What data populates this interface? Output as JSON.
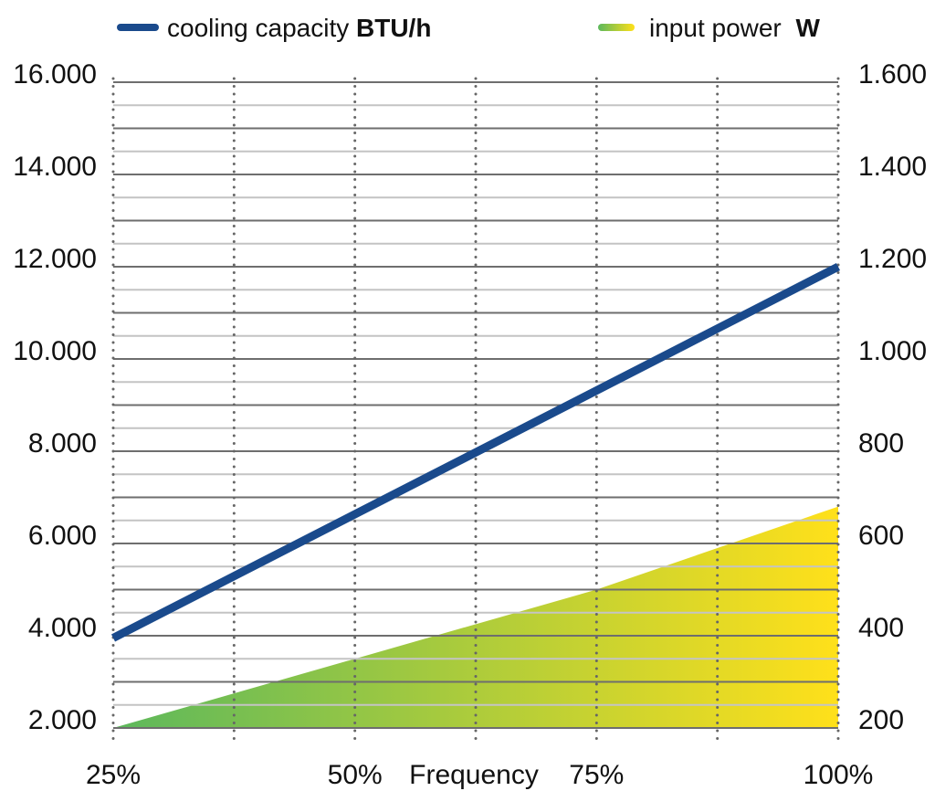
{
  "chart_data": {
    "type": "line+area",
    "xlabel": "Frequency",
    "x_ticks": [
      "25%",
      "50%",
      "75%",
      "100%"
    ],
    "x_range": [
      25,
      100
    ],
    "x_minor_grid": [
      25,
      37.5,
      50,
      62.5,
      75,
      87.5,
      100
    ],
    "y_left": {
      "range": [
        2000,
        16000
      ],
      "ticks": [
        "2.000",
        "4.000",
        "6.000",
        "8.000",
        "10.000",
        "12.000",
        "14.000",
        "16.000"
      ],
      "tick_values": [
        2000,
        4000,
        6000,
        8000,
        10000,
        12000,
        14000,
        16000
      ]
    },
    "y_right": {
      "range": [
        200,
        1600
      ],
      "ticks": [
        "200",
        "400",
        "600",
        "800",
        "1.000",
        "1.200",
        "1.400",
        "1.600"
      ],
      "tick_values": [
        200,
        400,
        600,
        800,
        1000,
        1200,
        1400,
        1600
      ]
    },
    "grid": true,
    "legend_placement": "top",
    "series": [
      {
        "name": "cooling capacity",
        "unit": "BTU/h",
        "type": "line",
        "axis": "left",
        "color": "#1a4a8c",
        "x": [
          25,
          100
        ],
        "y": [
          3950,
          12000
        ]
      },
      {
        "name": "input power",
        "unit": "W",
        "type": "area",
        "axis": "right",
        "gradient": [
          "#5cb85c",
          "#ffe01a"
        ],
        "x": [
          25,
          75,
          100
        ],
        "y": [
          200,
          500,
          680
        ]
      }
    ]
  }
}
